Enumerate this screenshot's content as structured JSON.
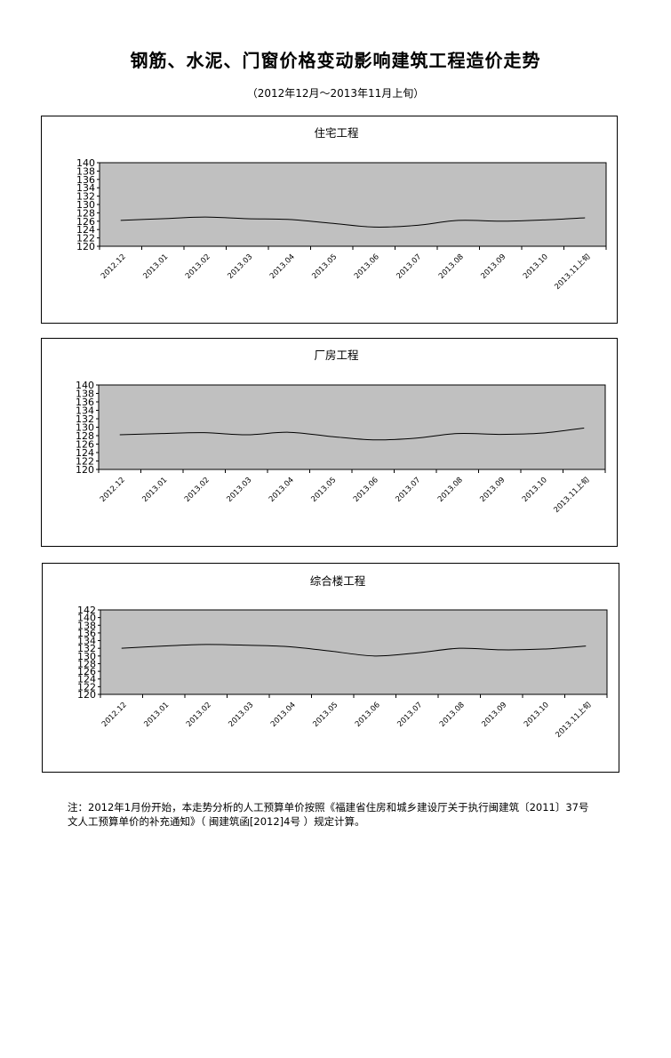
{
  "title": "钢筋、水泥、门窗价格变动影响建筑工程造价走势",
  "subtitle": "（2012年12月～2013年11月上旬）",
  "note_lines": [
    "注：2012年1月份开始，本走势分析的人工预算单价按照《福建省住房和城乡建设厅关于执行闽建筑〔2011〕37号",
    "文人工预算单价的补充通知》（ 闽建筑函[2012]4号 ）规定计算。"
  ],
  "colors": {
    "plot_bg": "#c0c0c0",
    "line": "#000000",
    "border": "#000000"
  },
  "chart_data": [
    {
      "type": "line",
      "title": "住宅工程",
      "categories": [
        "2012.12",
        "2013.01",
        "2013.02",
        "2013.03",
        "2013.04",
        "2013.05",
        "2013.06",
        "2013.07",
        "2013.08",
        "2013.09",
        "2013.10",
        "2013.11上旬"
      ],
      "values": [
        126.2,
        126.6,
        127.0,
        126.6,
        126.4,
        125.5,
        124.6,
        125.0,
        126.2,
        126.0,
        126.3,
        126.8
      ],
      "ylim": [
        120,
        140
      ],
      "yticks": [
        "120",
        "122",
        "124",
        "126",
        "128",
        "130",
        "132",
        "134",
        "136",
        "138",
        "140"
      ],
      "grid": false
    },
    {
      "type": "line",
      "title": "厂房工程",
      "categories": [
        "2012.12",
        "2013.01",
        "2013.02",
        "2013.03",
        "2013.04",
        "2013.05",
        "2013.06",
        "2013.07",
        "2013.08",
        "2013.09",
        "2013.10",
        "2013.11上旬"
      ],
      "values": [
        128.2,
        128.5,
        128.7,
        128.2,
        128.8,
        127.8,
        127.0,
        127.4,
        128.5,
        128.3,
        128.6,
        129.8
      ],
      "ylim": [
        120,
        140
      ],
      "yticks": [
        "120",
        "122",
        "124",
        "126",
        "128",
        "130",
        "132",
        "134",
        "136",
        "138",
        "140"
      ],
      "grid": false
    },
    {
      "type": "line",
      "title": "综合楼工程",
      "categories": [
        "2012.12",
        "2013.01",
        "2013.02",
        "2013.03",
        "2013.04",
        "2013.05",
        "2013.06",
        "2013.07",
        "2013.08",
        "2013.09",
        "2013.10",
        "2013.11上旬"
      ],
      "values": [
        132.0,
        132.6,
        133.0,
        132.8,
        132.4,
        131.2,
        130.0,
        130.8,
        132.0,
        131.6,
        131.8,
        132.6
      ],
      "ylim": [
        120,
        142
      ],
      "yticks": [
        "120",
        "122",
        "124",
        "126",
        "128",
        "130",
        "132",
        "134",
        "136",
        "138",
        "140",
        "142"
      ],
      "grid": false
    }
  ]
}
